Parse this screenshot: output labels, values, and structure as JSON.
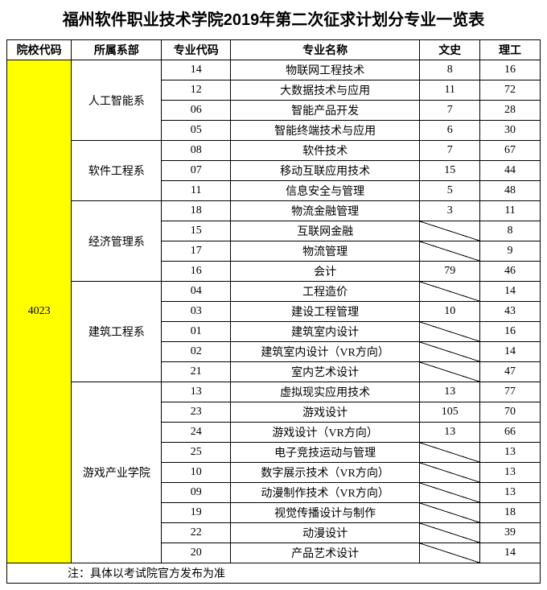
{
  "title": "福州软件职业技术学院2019年第二次征求计划分专业一览表",
  "headers": {
    "school_code": "院校代码",
    "department": "所属系部",
    "major_code": "专业代码",
    "major_name": "专业名称",
    "liberal": "文史",
    "science": "理工"
  },
  "school_code": "4023",
  "departments": [
    {
      "name": "人工智能系",
      "majors": [
        {
          "code": "14",
          "name": "物联网工程技术",
          "liberal": "8",
          "science": "16"
        },
        {
          "code": "12",
          "name": "大数据技术与应用",
          "liberal": "11",
          "science": "72"
        },
        {
          "code": "06",
          "name": "智能产品开发",
          "liberal": "7",
          "science": "28"
        },
        {
          "code": "05",
          "name": "智能终端技术与应用",
          "liberal": "6",
          "science": "30"
        }
      ]
    },
    {
      "name": "软件工程系",
      "majors": [
        {
          "code": "08",
          "name": "软件技术",
          "liberal": "7",
          "science": "67"
        },
        {
          "code": "07",
          "name": "移动互联应用技术",
          "liberal": "15",
          "science": "44"
        },
        {
          "code": "11",
          "name": "信息安全与管理",
          "liberal": "5",
          "science": "48"
        }
      ]
    },
    {
      "name": "经济管理系",
      "majors": [
        {
          "code": "18",
          "name": "物流金融管理",
          "liberal": "3",
          "science": "11"
        },
        {
          "code": "15",
          "name": "互联网金融",
          "liberal": null,
          "science": "8"
        },
        {
          "code": "17",
          "name": "物流管理",
          "liberal": null,
          "science": "9"
        },
        {
          "code": "16",
          "name": "会计",
          "liberal": "79",
          "science": "46"
        }
      ]
    },
    {
      "name": "建筑工程系",
      "majors": [
        {
          "code": "04",
          "name": "工程造价",
          "liberal": null,
          "science": "14"
        },
        {
          "code": "03",
          "name": "建设工程管理",
          "liberal": "10",
          "science": "43"
        },
        {
          "code": "01",
          "name": "建筑室内设计",
          "liberal": null,
          "science": "16"
        },
        {
          "code": "02",
          "name": "建筑室内设计（VR方向）",
          "liberal": null,
          "science": "14"
        },
        {
          "code": "21",
          "name": "室内艺术设计",
          "liberal": null,
          "science": "47"
        }
      ]
    },
    {
      "name": "游戏产业学院",
      "majors": [
        {
          "code": "13",
          "name": "虚拟现实应用技术",
          "liberal": "13",
          "science": "77"
        },
        {
          "code": "23",
          "name": "游戏设计",
          "liberal": "105",
          "science": "70"
        },
        {
          "code": "24",
          "name": "游戏设计（VR方向）",
          "liberal": "13",
          "science": "66"
        },
        {
          "code": "25",
          "name": "电子竞技运动与管理",
          "liberal": null,
          "science": "13"
        },
        {
          "code": "10",
          "name": "数字展示技术（VR方向）",
          "liberal": null,
          "science": "13"
        },
        {
          "code": "09",
          "name": "动漫制作技术（VR方向）",
          "liberal": null,
          "science": "13"
        },
        {
          "code": "19",
          "name": "视觉传播设计与制作",
          "liberal": null,
          "science": "18"
        },
        {
          "code": "22",
          "name": "动漫设计",
          "liberal": null,
          "science": "39"
        },
        {
          "code": "20",
          "name": "产品艺术设计",
          "liberal": null,
          "science": "14"
        }
      ]
    }
  ],
  "note": "注：具体以考试院官方发布为准",
  "col_widths": [
    "75px",
    "105px",
    "80px",
    "220px",
    "70px",
    "70px"
  ],
  "colors": {
    "highlight": "#ffff00",
    "border": "#000000",
    "background": "#ffffff"
  }
}
